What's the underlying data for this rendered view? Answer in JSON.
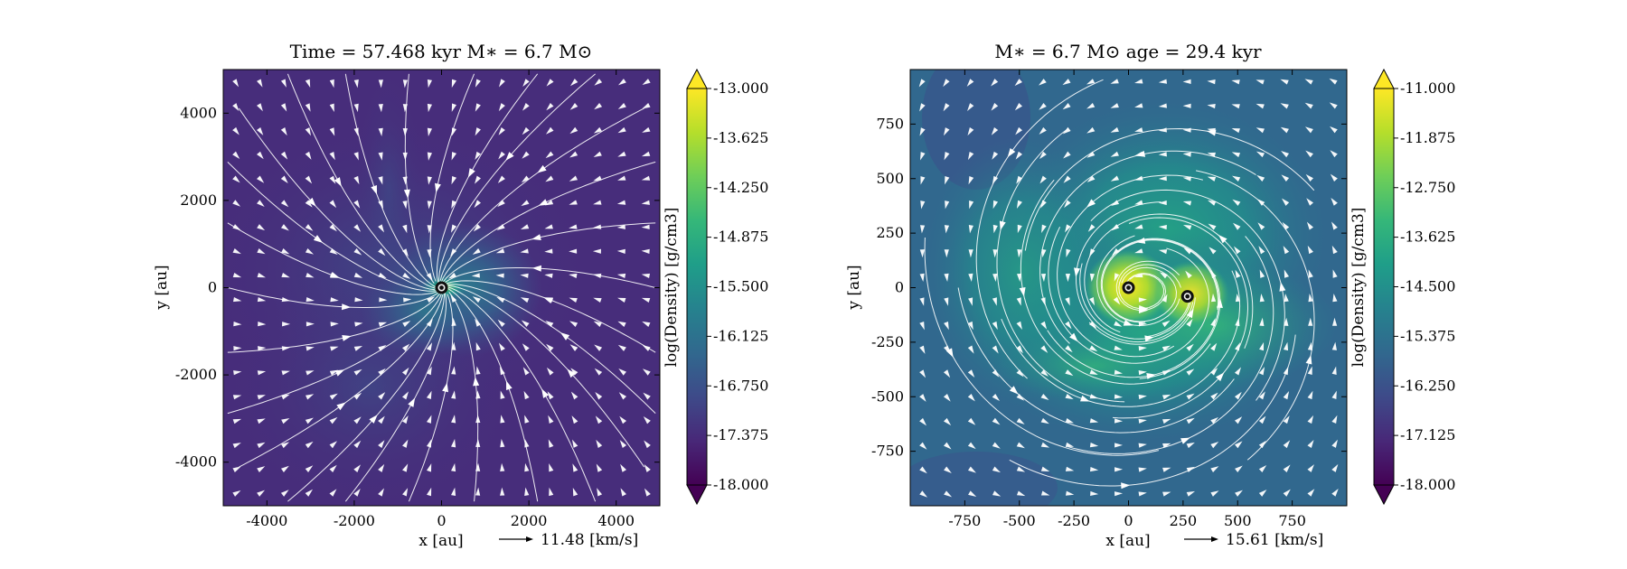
{
  "chart_data": [
    {
      "type": "heatmap",
      "title": "Time = 57.468 kyr    M∗ = 6.7 M⊙",
      "xlabel": "x [au]",
      "ylabel": "y [au]",
      "xlim": [
        -5000,
        5000
      ],
      "ylim": [
        -5000,
        5000
      ],
      "xticks": [
        -4000,
        -2000,
        0,
        2000,
        4000
      ],
      "yticks": [
        4000,
        2000,
        0,
        -2000,
        -4000
      ],
      "colorbar": {
        "label": "log(Density) [g/cm3]",
        "range": [
          -18.0,
          -13.0
        ],
        "ticks": [
          "-13.000",
          "-13.625",
          "-14.250",
          "-14.875",
          "-15.500",
          "-16.125",
          "-16.750",
          "-17.375",
          "-18.000"
        ],
        "colormap": [
          "#440154",
          "#482878",
          "#3e4a89",
          "#31688e",
          "#26828e",
          "#1f9e89",
          "#35b779",
          "#6ece58",
          "#b5de2b",
          "#fde725"
        ]
      },
      "quiver_key": {
        "label": "11.48 [km/s]"
      },
      "stars": [
        {
          "x": 0,
          "y": 0
        }
      ],
      "overlays": [
        "streamlines",
        "velocity-arrows"
      ]
    },
    {
      "type": "heatmap",
      "title": "M∗ = 6.7 M⊙          age = 29.4 kyr",
      "xlabel": "x [au]",
      "ylabel": "y [au]",
      "xlim": [
        -1000,
        1000
      ],
      "ylim": [
        -1000,
        1000
      ],
      "xticks": [
        -750,
        -500,
        -250,
        0,
        250,
        500,
        750
      ],
      "yticks": [
        750,
        500,
        250,
        0,
        -250,
        -500,
        -750
      ],
      "colorbar": {
        "label": "log(Density) [g/cm3]",
        "range": [
          -18.0,
          -11.0
        ],
        "ticks": [
          "-11.000",
          "-11.875",
          "-12.750",
          "-13.625",
          "-14.500",
          "-15.375",
          "-16.250",
          "-17.125",
          "-18.000"
        ],
        "colormap": [
          "#440154",
          "#482878",
          "#3e4a89",
          "#31688e",
          "#26828e",
          "#1f9e89",
          "#35b779",
          "#6ece58",
          "#b5de2b",
          "#fde725"
        ]
      },
      "quiver_key": {
        "label": "15.61 [km/s]"
      },
      "stars": [
        {
          "x": 0,
          "y": 0
        },
        {
          "x": 270,
          "y": -40
        }
      ],
      "overlays": [
        "streamlines",
        "velocity-arrows"
      ]
    }
  ]
}
